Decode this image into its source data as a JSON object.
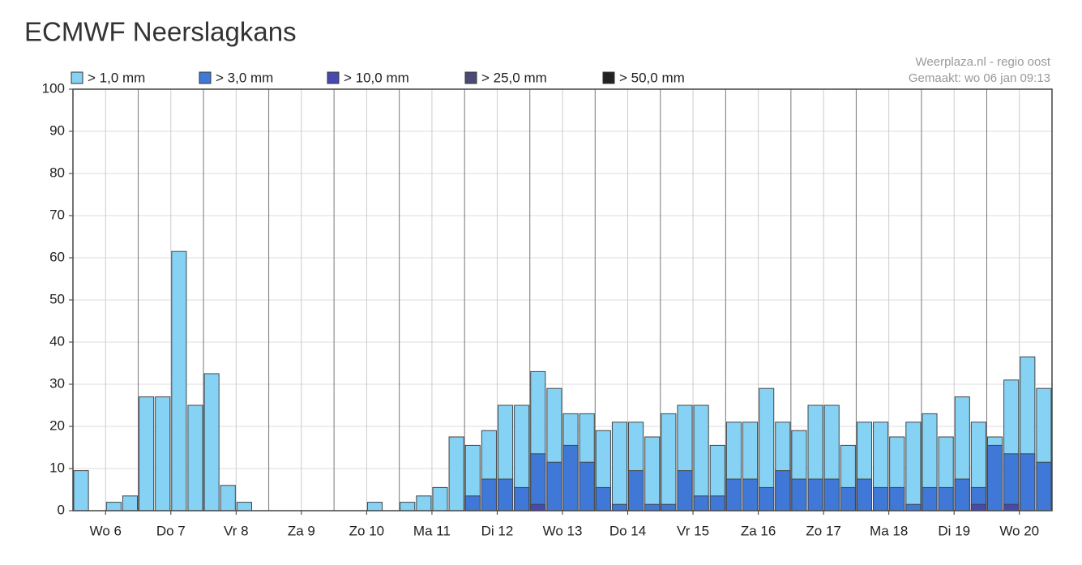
{
  "chart_data": {
    "type": "bar",
    "title": "ECMWF Neerslagkans",
    "annotations": [
      "Weerplaza.nl - regio oost",
      "Gemaakt: wo 06 jan 09:13"
    ],
    "categories": [
      null,
      null,
      "Wo 6",
      null,
      null,
      null,
      "Do 7",
      null,
      null,
      null,
      "Vr 8",
      null,
      null,
      null,
      "Za 9",
      null,
      null,
      null,
      "Zo 10",
      null,
      null,
      null,
      "Ma 11",
      null,
      null,
      null,
      "Di 12",
      null,
      null,
      null,
      "Wo 13",
      null,
      null,
      null,
      "Do 14",
      null,
      null,
      null,
      "Vr 15",
      null,
      null,
      null,
      "Za 16",
      null,
      null,
      null,
      "Zo 17",
      null,
      null,
      null,
      "Ma 18",
      null,
      null,
      null,
      "Di 19",
      null,
      null,
      null,
      "Wo 20",
      null
    ],
    "series": [
      {
        "name": "> 1,0 mm",
        "color": "#86d2f4",
        "values": [
          9.5,
          0,
          2,
          3.5,
          27,
          27,
          61.5,
          25,
          32.5,
          6,
          2,
          0,
          0,
          0,
          0,
          0,
          0,
          0,
          2,
          0,
          2,
          3.5,
          5.5,
          17.5,
          15.5,
          19,
          25,
          25,
          33,
          29,
          23,
          23,
          19,
          21,
          21,
          17.5,
          23,
          25,
          25,
          15.5,
          21,
          21,
          29,
          21,
          19,
          25,
          25,
          15.5,
          21,
          21,
          17.5,
          21,
          23,
          17.5,
          27,
          21,
          17.5,
          31,
          36.5,
          29
        ]
      },
      {
        "name": "> 3,0 mm",
        "color": "#3f78d6",
        "values": [
          0,
          0,
          0,
          0,
          0,
          0,
          0,
          0,
          0,
          0,
          0,
          0,
          0,
          0,
          0,
          0,
          0,
          0,
          0,
          0,
          0,
          0,
          0,
          0,
          3.5,
          7.5,
          7.5,
          5.5,
          13.5,
          11.5,
          15.5,
          11.5,
          5.5,
          1.5,
          9.5,
          1.5,
          1.5,
          9.5,
          3.5,
          3.5,
          7.5,
          7.5,
          5.5,
          9.5,
          7.5,
          7.5,
          7.5,
          5.5,
          7.5,
          5.5,
          5.5,
          1.5,
          5.5,
          5.5,
          7.5,
          5.5,
          15.5,
          13.5,
          13.5,
          11.5
        ]
      },
      {
        "name": "> 10,0 mm",
        "color": "#4848b2",
        "values": [
          0,
          0,
          0,
          0,
          0,
          0,
          0,
          0,
          0,
          0,
          0,
          0,
          0,
          0,
          0,
          0,
          0,
          0,
          0,
          0,
          0,
          0,
          0,
          0,
          0,
          0,
          0,
          0,
          1.5,
          0,
          0,
          0,
          0,
          0,
          0,
          0,
          0,
          0,
          0,
          0,
          0,
          0,
          0,
          0,
          0,
          0,
          0,
          0,
          0,
          0,
          0,
          0,
          0,
          0,
          0,
          1.5,
          0,
          1.5,
          0,
          0
        ]
      },
      {
        "name": "> 25,0 mm",
        "color": "#4b4b78",
        "values": [
          0,
          0,
          0,
          0,
          0,
          0,
          0,
          0,
          0,
          0,
          0,
          0,
          0,
          0,
          0,
          0,
          0,
          0,
          0,
          0,
          0,
          0,
          0,
          0,
          0,
          0,
          0,
          0,
          0,
          0,
          0,
          0,
          0,
          0,
          0,
          0,
          0,
          0,
          0,
          0,
          0,
          0,
          0,
          0,
          0,
          0,
          0,
          0,
          0,
          0,
          0,
          0,
          0,
          0,
          0,
          0,
          0,
          0,
          0,
          0
        ]
      },
      {
        "name": "> 50,0 mm",
        "color": "#222222",
        "values": [
          0,
          0,
          0,
          0,
          0,
          0,
          0,
          0,
          0,
          0,
          0,
          0,
          0,
          0,
          0,
          0,
          0,
          0,
          0,
          0,
          0,
          0,
          0,
          0,
          0,
          0,
          0,
          0,
          0,
          0,
          0,
          0,
          0,
          0,
          0,
          0,
          0,
          0,
          0,
          0,
          0,
          0,
          0,
          0,
          0,
          0,
          0,
          0,
          0,
          0,
          0,
          0,
          0,
          0,
          0,
          0,
          0,
          0,
          0,
          0
        ]
      }
    ],
    "ylim": [
      0,
      100
    ],
    "yticks": [
      0,
      10,
      20,
      30,
      40,
      50,
      60,
      70,
      80,
      90,
      100
    ],
    "grid": true
  }
}
